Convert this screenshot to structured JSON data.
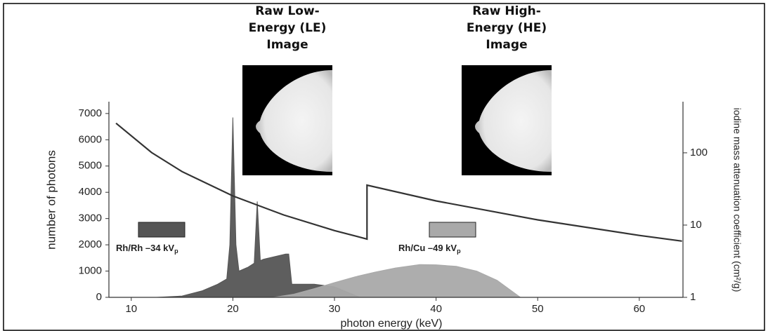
{
  "chart_data": {
    "type": "line",
    "xlabel": "photon energy (keV)",
    "ylabel": "number of photons",
    "y2label": "iodine mass attenuation coefficient (cm²/g)",
    "xlim": [
      7.8,
      64.3
    ],
    "ylim": [
      0,
      7450
    ],
    "y2lim": [
      1,
      510
    ],
    "y2scale": "log",
    "xticks": [
      10,
      20,
      30,
      40,
      50,
      60
    ],
    "yticks": [
      0,
      1000,
      2000,
      3000,
      4000,
      5000,
      6000,
      7000
    ],
    "y2ticks": [
      1,
      10,
      100
    ],
    "series": [
      {
        "type": "area",
        "name": "Rh/Rh –34 kV",
        "name_sub": "p",
        "color": "#555555",
        "x": [
          12.5,
          15,
          17,
          18.5,
          19.4,
          19.7,
          20.0,
          20.3,
          20.6,
          21.5,
          22.1,
          22.4,
          22.7,
          23,
          25.2,
          25.5,
          25.8,
          28,
          30,
          32.5
        ],
        "values": [
          0,
          50,
          250,
          500,
          700,
          2000,
          6850,
          2000,
          1000,
          1150,
          1300,
          3650,
          1400,
          1450,
          1650,
          1650,
          500,
          500,
          400,
          0
        ]
      },
      {
        "type": "area",
        "name": "Rh/Cu –49 kV",
        "name_sub": "p",
        "color": "#a9a9a9",
        "x": [
          24,
          26,
          28,
          30,
          32,
          34,
          36,
          38.4,
          40,
          42,
          44,
          46,
          48.3
        ],
        "values": [
          0,
          120,
          330,
          560,
          780,
          960,
          1120,
          1250,
          1240,
          1180,
          1000,
          650,
          0
        ]
      },
      {
        "type": "line",
        "axis": "y2",
        "color": "#333333",
        "x": [
          8.5,
          12,
          15,
          20,
          25,
          30,
          33.2,
          33.2,
          40,
          50,
          60,
          64.2
        ],
        "values": [
          257,
          101,
          55,
          25.3,
          13.8,
          8.4,
          6.4,
          35.7,
          21.6,
          11.8,
          7.2,
          6.0
        ]
      }
    ]
  },
  "images": [
    {
      "title_lines": [
        "Raw Low-",
        "Energy (LE)",
        "Image"
      ]
    },
    {
      "title_lines": [
        "Raw High-",
        "Energy (HE)",
        "Image"
      ]
    }
  ]
}
